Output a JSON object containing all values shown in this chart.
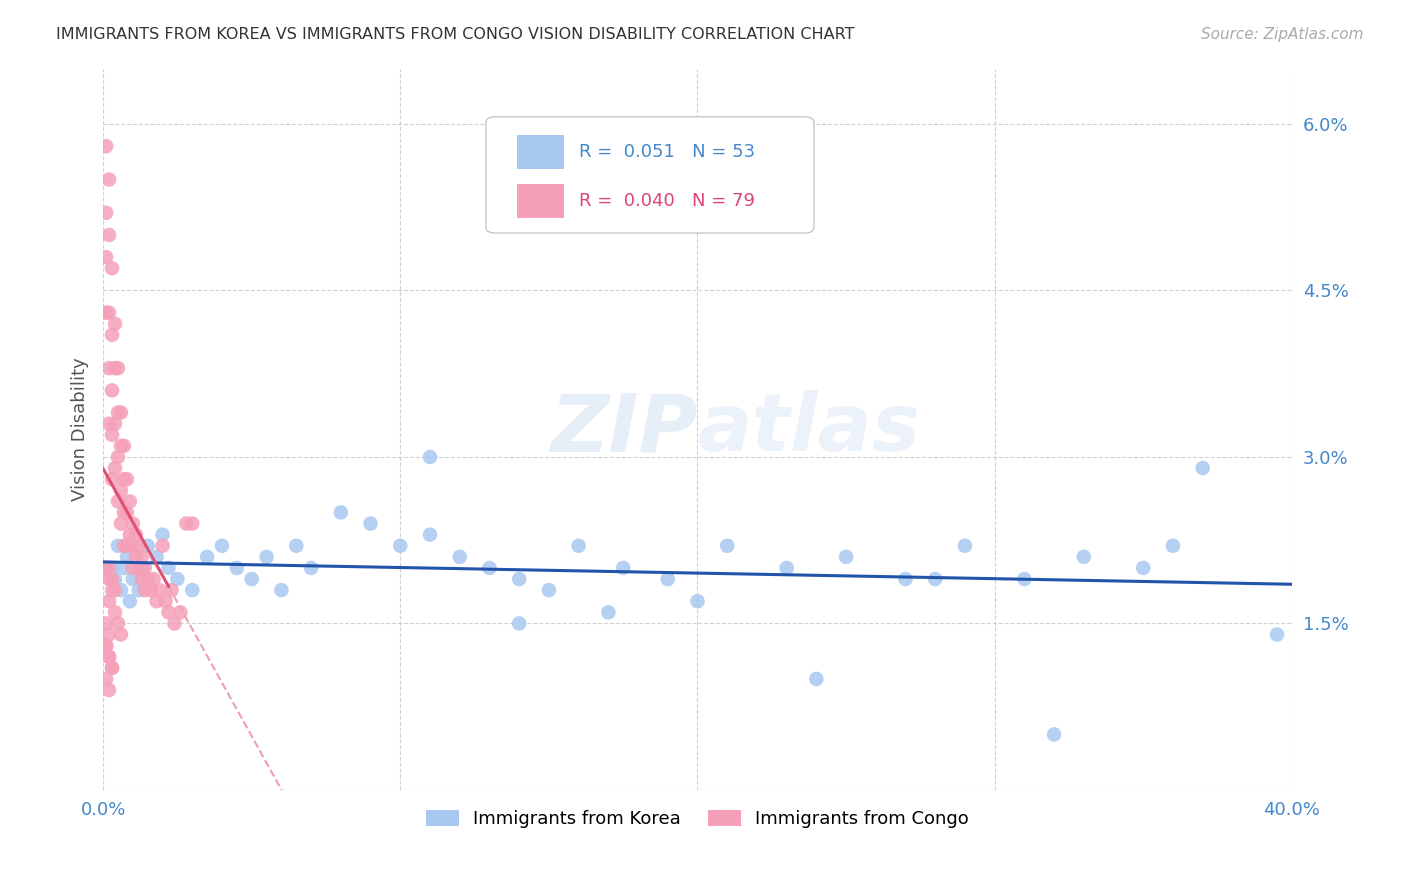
{
  "title": "IMMIGRANTS FROM KOREA VS IMMIGRANTS FROM CONGO VISION DISABILITY CORRELATION CHART",
  "source": "Source: ZipAtlas.com",
  "ylabel": "Vision Disability",
  "x_min": 0.0,
  "x_max": 0.4,
  "y_min": 0.0,
  "y_max": 0.065,
  "y_ticks": [
    0.0,
    0.015,
    0.03,
    0.045,
    0.06
  ],
  "y_tick_labels_right": [
    "",
    "1.5%",
    "3.0%",
    "4.5%",
    "6.0%"
  ],
  "x_ticks": [
    0.0,
    0.1,
    0.2,
    0.3,
    0.4
  ],
  "x_tick_labels": [
    "0.0%",
    "",
    "",
    "",
    "40.0%"
  ],
  "korea_R": 0.051,
  "korea_N": 53,
  "congo_R": 0.04,
  "congo_N": 79,
  "korea_color": "#a8c8f0",
  "congo_color": "#f5a0b8",
  "korea_line_color": "#2255aa",
  "congo_line_color": "#e05070",
  "background_color": "#ffffff",
  "watermark": "ZIPatlas",
  "korea_x": [
    0.003,
    0.004,
    0.005,
    0.006,
    0.007,
    0.008,
    0.009,
    0.01,
    0.012,
    0.013,
    0.015,
    0.018,
    0.02,
    0.022,
    0.025,
    0.03,
    0.035,
    0.04,
    0.045,
    0.05,
    0.055,
    0.06,
    0.065,
    0.07,
    0.08,
    0.09,
    0.1,
    0.11,
    0.12,
    0.13,
    0.14,
    0.15,
    0.16,
    0.175,
    0.19,
    0.21,
    0.23,
    0.25,
    0.27,
    0.29,
    0.31,
    0.33,
    0.35,
    0.37,
    0.395,
    0.28,
    0.32,
    0.36,
    0.24,
    0.2,
    0.17,
    0.14,
    0.11
  ],
  "korea_y": [
    0.02,
    0.019,
    0.022,
    0.018,
    0.02,
    0.021,
    0.017,
    0.019,
    0.018,
    0.02,
    0.022,
    0.021,
    0.023,
    0.02,
    0.019,
    0.018,
    0.021,
    0.022,
    0.02,
    0.019,
    0.021,
    0.018,
    0.022,
    0.02,
    0.025,
    0.024,
    0.022,
    0.023,
    0.021,
    0.02,
    0.019,
    0.018,
    0.022,
    0.02,
    0.019,
    0.022,
    0.02,
    0.021,
    0.019,
    0.022,
    0.019,
    0.021,
    0.02,
    0.029,
    0.014,
    0.019,
    0.005,
    0.022,
    0.01,
    0.017,
    0.016,
    0.015,
    0.03
  ],
  "congo_x": [
    0.001,
    0.001,
    0.001,
    0.001,
    0.002,
    0.002,
    0.002,
    0.002,
    0.002,
    0.003,
    0.003,
    0.003,
    0.003,
    0.003,
    0.004,
    0.004,
    0.004,
    0.004,
    0.005,
    0.005,
    0.005,
    0.005,
    0.006,
    0.006,
    0.006,
    0.006,
    0.007,
    0.007,
    0.007,
    0.007,
    0.008,
    0.008,
    0.008,
    0.009,
    0.009,
    0.01,
    0.01,
    0.01,
    0.011,
    0.011,
    0.012,
    0.012,
    0.013,
    0.013,
    0.014,
    0.014,
    0.015,
    0.016,
    0.017,
    0.018,
    0.019,
    0.02,
    0.021,
    0.022,
    0.023,
    0.024,
    0.026,
    0.028,
    0.03,
    0.001,
    0.002,
    0.003,
    0.004,
    0.005,
    0.006,
    0.001,
    0.002,
    0.003,
    0.001,
    0.002,
    0.001,
    0.002,
    0.001,
    0.002,
    0.003,
    0.002,
    0.003,
    0.004,
    0.002
  ],
  "congo_y": [
    0.058,
    0.052,
    0.048,
    0.043,
    0.055,
    0.05,
    0.043,
    0.038,
    0.033,
    0.047,
    0.041,
    0.036,
    0.032,
    0.028,
    0.042,
    0.038,
    0.033,
    0.029,
    0.038,
    0.034,
    0.03,
    0.026,
    0.034,
    0.031,
    0.027,
    0.024,
    0.031,
    0.028,
    0.025,
    0.022,
    0.028,
    0.025,
    0.022,
    0.026,
    0.023,
    0.024,
    0.022,
    0.02,
    0.023,
    0.021,
    0.022,
    0.02,
    0.021,
    0.019,
    0.02,
    0.018,
    0.019,
    0.018,
    0.019,
    0.017,
    0.018,
    0.022,
    0.017,
    0.016,
    0.018,
    0.015,
    0.016,
    0.024,
    0.024,
    0.02,
    0.019,
    0.018,
    0.016,
    0.015,
    0.014,
    0.013,
    0.012,
    0.011,
    0.01,
    0.009,
    0.015,
    0.014,
    0.013,
    0.012,
    0.011,
    0.02,
    0.019,
    0.018,
    0.017
  ]
}
